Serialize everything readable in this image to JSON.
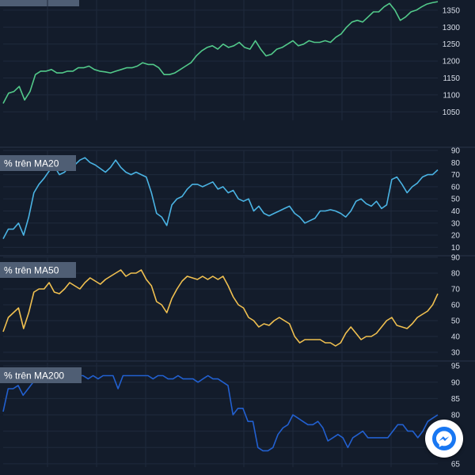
{
  "chart_data": [
    {
      "type": "line",
      "series": [
        {
          "color": "#52c98a",
          "values": [
            1075,
            1105,
            1110,
            1125,
            1085,
            1110,
            1160,
            1170,
            1170,
            1175,
            1165,
            1165,
            1170,
            1170,
            1180,
            1180,
            1185,
            1175,
            1170,
            1168,
            1165,
            1170,
            1175,
            1180,
            1180,
            1185,
            1195,
            1190,
            1190,
            1180,
            1160,
            1160,
            1165,
            1175,
            1185,
            1195,
            1215,
            1230,
            1240,
            1245,
            1235,
            1250,
            1240,
            1245,
            1255,
            1240,
            1235,
            1260,
            1235,
            1215,
            1220,
            1235,
            1240,
            1250,
            1260,
            1245,
            1250,
            1260,
            1255,
            1255,
            1260,
            1255,
            1270,
            1280,
            1300,
            1315,
            1320,
            1315,
            1330,
            1345,
            1345,
            1360,
            1370,
            1350,
            1320,
            1330,
            1345,
            1350,
            1360,
            1368,
            1372,
            1375
          ]
        }
      ],
      "ylim": [
        1025,
        1380
      ],
      "y_ticks": [
        1050,
        1100,
        1150,
        1200,
        1250,
        1300,
        1350
      ],
      "grid": true
    },
    {
      "type": "line",
      "title": "% trên MA20",
      "series": [
        {
          "color": "#4ab3e3",
          "values": [
            17,
            25,
            25,
            30,
            20,
            35,
            55,
            62,
            67,
            73,
            77,
            70,
            72,
            77,
            78,
            82,
            84,
            80,
            78,
            75,
            72,
            76,
            82,
            76,
            72,
            70,
            72,
            70,
            68,
            55,
            38,
            35,
            28,
            45,
            50,
            52,
            58,
            62,
            62,
            60,
            62,
            64,
            58,
            60,
            55,
            57,
            50,
            48,
            50,
            40,
            44,
            38,
            36,
            38,
            40,
            42,
            44,
            38,
            35,
            30,
            32,
            34,
            40,
            40,
            41,
            40,
            38,
            35,
            40,
            48,
            50,
            46,
            44,
            48,
            42,
            45,
            66,
            68,
            62,
            55,
            60,
            63,
            68,
            70,
            70,
            74
          ]
        }
      ],
      "ylim": [
        5,
        90
      ],
      "y_ticks": [
        10,
        20,
        30,
        40,
        50,
        60,
        70,
        80,
        90
      ],
      "grid": true
    },
    {
      "type": "line",
      "title": "% trên MA50",
      "series": [
        {
          "color": "#f0c050",
          "values": [
            43,
            52,
            55,
            58,
            45,
            55,
            68,
            70,
            70,
            74,
            68,
            67,
            70,
            74,
            72,
            70,
            74,
            77,
            75,
            73,
            76,
            78,
            80,
            82,
            78,
            80,
            80,
            82,
            76,
            72,
            62,
            60,
            55,
            64,
            70,
            75,
            78,
            77,
            76,
            78,
            76,
            78,
            76,
            78,
            72,
            65,
            60,
            58,
            52,
            50,
            46,
            48,
            47,
            50,
            52,
            50,
            48,
            40,
            36,
            38,
            38,
            38,
            38,
            36,
            36,
            34,
            36,
            42,
            46,
            42,
            38,
            40,
            40,
            42,
            46,
            50,
            52,
            47,
            46,
            45,
            48,
            52,
            54,
            56,
            60,
            67
          ]
        }
      ],
      "ylim": [
        25,
        90
      ],
      "y_ticks": [
        30,
        40,
        50,
        60,
        70,
        80,
        90
      ],
      "grid": true
    },
    {
      "type": "line",
      "title": "% trên MA200",
      "series": [
        {
          "color": "#2260d0",
          "values": [
            81,
            88,
            88,
            89,
            86,
            88,
            90,
            92,
            92,
            92,
            91,
            92,
            91,
            91,
            91,
            92,
            92,
            91,
            92,
            91,
            92,
            92,
            92,
            88,
            92,
            92,
            92,
            92,
            92,
            92,
            91,
            92,
            92,
            91,
            91,
            92,
            91,
            91,
            91,
            90,
            91,
            92,
            91,
            91,
            90,
            89,
            80,
            82,
            82,
            78,
            78,
            70,
            69,
            69,
            70,
            74,
            76,
            77,
            80,
            79,
            78,
            77,
            77,
            78,
            76,
            72,
            73,
            74,
            73,
            70,
            73,
            74,
            75,
            73,
            73,
            73,
            73,
            73,
            75,
            77,
            77,
            75,
            75,
            73,
            75,
            78,
            79,
            80
          ]
        }
      ],
      "ylim": [
        64,
        96
      ],
      "y_ticks": [
        65,
        70,
        75,
        80,
        85,
        90,
        95
      ],
      "grid": true
    }
  ],
  "messenger": {
    "color": "#1877f2",
    "icon": "messenger-icon"
  }
}
